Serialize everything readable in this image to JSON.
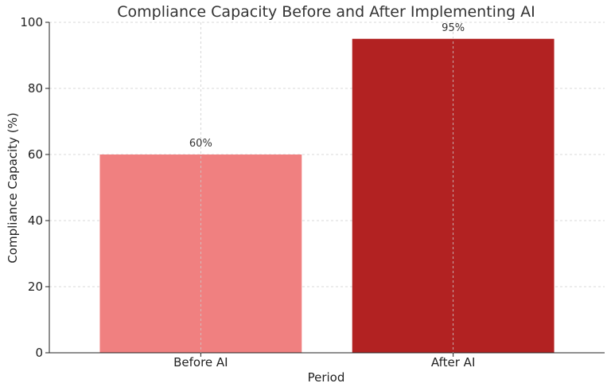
{
  "chart_data": {
    "type": "bar",
    "title": "Compliance Capacity Before and After Implementing AI",
    "xlabel": "Period",
    "ylabel": "Compliance Capacity (%)",
    "categories": [
      "Before AI",
      "After AI"
    ],
    "values": [
      60,
      95
    ],
    "value_labels": [
      "60%",
      "95%"
    ],
    "bar_colors": [
      "#f08080",
      "#b22222"
    ],
    "ylim": [
      0,
      100
    ],
    "yticks": [
      0,
      20,
      40,
      60,
      80,
      100
    ],
    "grid": true,
    "legend": "none"
  }
}
